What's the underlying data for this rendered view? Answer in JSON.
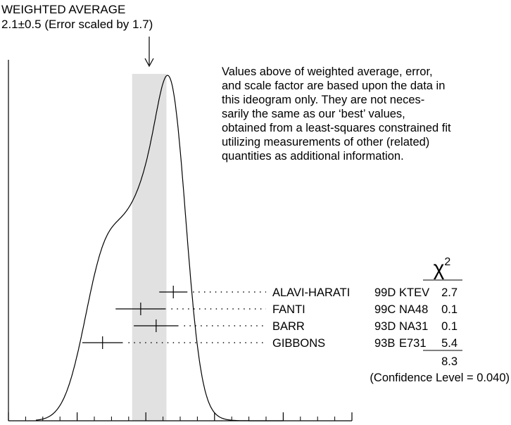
{
  "header": {
    "line1": "WEIGHTED AVERAGE",
    "line2": "2.1±0.5 (Error scaled by 1.7)"
  },
  "note": {
    "lines": [
      "Values above of weighted average, error,",
      "and scale factor are based upon the data in",
      "this ideogram only.  They are not neces-",
      "sarily the same as our ‘best’ values,",
      "obtained from a least-squares constrained fit",
      "utilizing measurements of other (related)",
      "quantities as additional information."
    ]
  },
  "chi2_symbol": "χ",
  "chi2_exponent": "2",
  "chi2_total": "8.3",
  "confidence": "(Confidence Level = 0.040)",
  "chart_data": {
    "type": "scatter",
    "xlim": [
      -2,
      8
    ],
    "xticks": [
      -2,
      0,
      2,
      4,
      6,
      8
    ],
    "weighted_average": {
      "value": 2.1,
      "error": 0.5,
      "scale_factor": 1.7
    },
    "measurements": [
      {
        "author": "ALAVI-HARATI",
        "ref": "99D",
        "experiment": "KTEV",
        "value": 2.8,
        "error": 0.41,
        "chi2": "2.7"
      },
      {
        "author": "FANTI",
        "ref": "99C",
        "experiment": "NA48",
        "value": 1.85,
        "error": 0.73,
        "chi2": "0.1"
      },
      {
        "author": "BARR",
        "ref": "93D",
        "experiment": "NA31",
        "value": 2.3,
        "error": 0.65,
        "chi2": "0.1"
      },
      {
        "author": "GIBBONS",
        "ref": "93B",
        "experiment": "E731",
        "value": 0.74,
        "error": 0.59,
        "chi2": "5.4"
      }
    ]
  }
}
